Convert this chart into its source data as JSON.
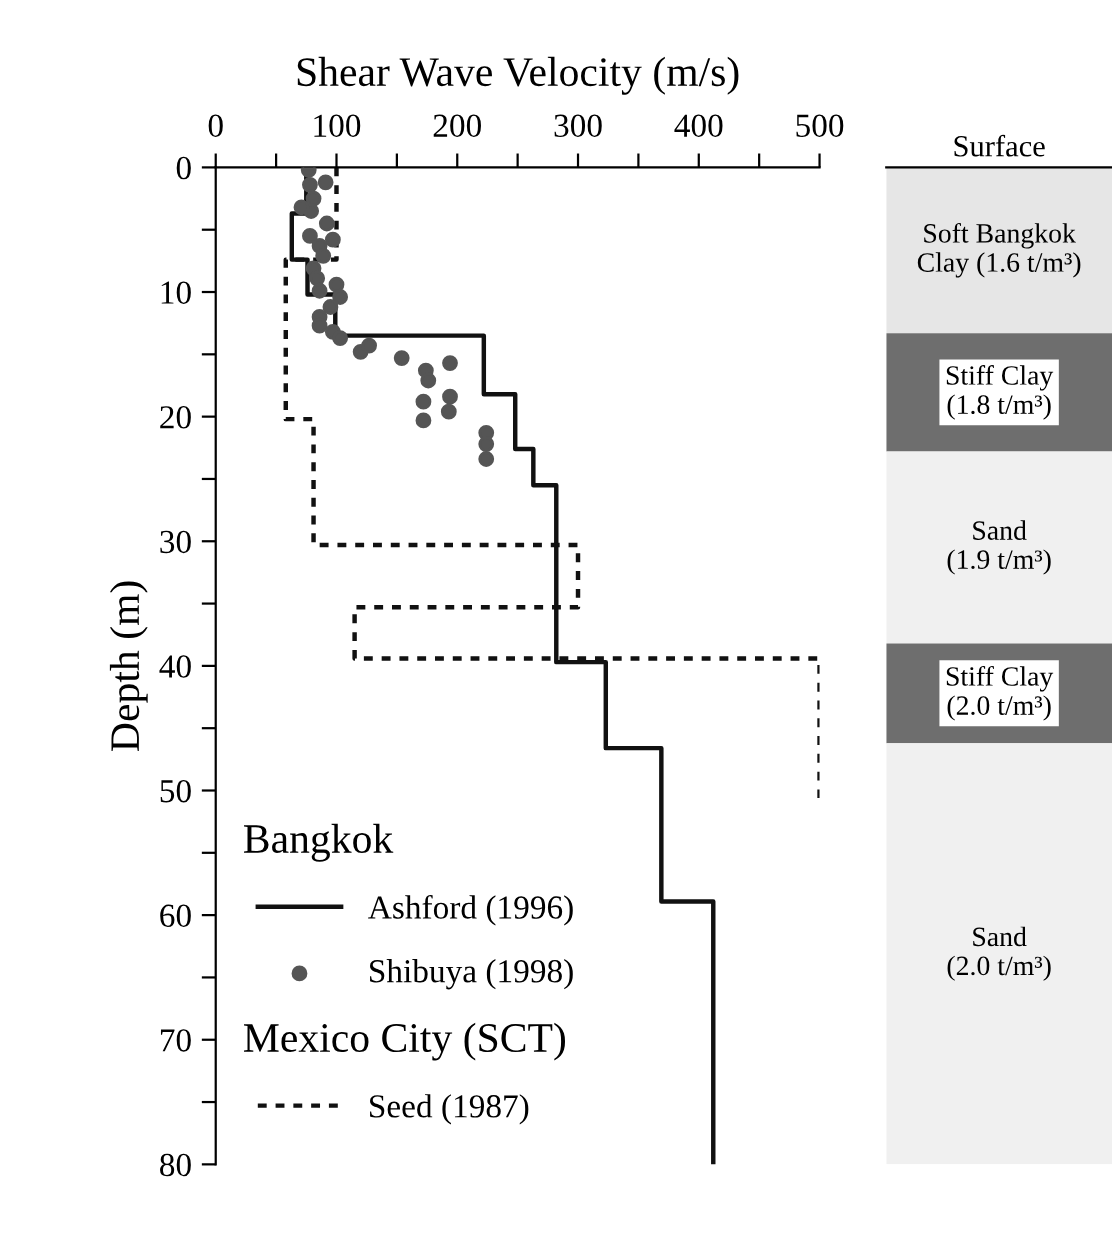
{
  "chart_data": [
    {
      "type": "line",
      "xlabel": "Shear Wave Velocity (m/s)",
      "ylabel": "Depth (m)",
      "xlim": [
        0,
        500
      ],
      "xticks": [
        0,
        {
          "value": 50,
          "label": null
        },
        100,
        {
          "value": 150,
          "label": null
        },
        200,
        {
          "value": 250,
          "label": null
        },
        300,
        {
          "value": 350,
          "label": null
        },
        400,
        {
          "value": 450,
          "label": null
        },
        500
      ],
      "ylim": [
        80,
        0
      ],
      "yticks": [
        0,
        {
          "value": 5,
          "label": null
        },
        10,
        {
          "value": 15,
          "label": null
        },
        20,
        {
          "value": 25,
          "label": null
        },
        30,
        {
          "value": 35,
          "label": null
        },
        40,
        {
          "value": 45,
          "label": null
        },
        50,
        {
          "value": 55,
          "label": null
        },
        60,
        {
          "value": 65,
          "label": null
        },
        70,
        {
          "value": 75,
          "label": null
        },
        80
      ],
      "grid": false,
      "legend": "bottom left",
      "annotations": [
        "Bangkok",
        "Mexico City (SCT)"
      ],
      "series": [
        {
          "name": "Ashford (1996)",
          "type": "line",
          "line_style": "solid",
          "marker": "none",
          "color": "#111111",
          "x": [
            75,
            75,
            63,
            63,
            76,
            76,
            99,
            99,
            222,
            222,
            248,
            248,
            263,
            263,
            282,
            282,
            323,
            323,
            369,
            369,
            412,
            412
          ],
          "values": [
            0,
            3.7,
            3.7,
            7.4,
            7.4,
            10.2,
            10.2,
            13.5,
            13.5,
            18.2,
            18.2,
            22.6,
            22.6,
            25.5,
            25.5,
            39.7,
            39.7,
            46.6,
            46.6,
            58.9,
            58.9,
            80
          ]
        },
        {
          "name": "Shibuya (1998)",
          "type": "scatter",
          "marker": "circle",
          "color": "#555555",
          "x": [
            77,
            91,
            78,
            81,
            79,
            71,
            92,
            78,
            86,
            97,
            89,
            81,
            84,
            100,
            86,
            103,
            95,
            86,
            86,
            97,
            103,
            120,
            127,
            154,
            174,
            176,
            194,
            172,
            194,
            193,
            172,
            224,
            224,
            224
          ],
          "values": [
            0.2,
            1.2,
            1.4,
            2.5,
            3.5,
            3.2,
            4.5,
            5.5,
            6.3,
            5.8,
            7.1,
            8.1,
            8.9,
            9.4,
            9.9,
            10.4,
            11.2,
            12.0,
            12.7,
            13.2,
            13.7,
            14.8,
            14.3,
            15.3,
            16.3,
            17.1,
            15.7,
            18.8,
            18.4,
            19.6,
            20.3,
            21.3,
            22.2,
            23.4
          ]
        },
        {
          "name": "Seed (1987)",
          "type": "line",
          "line_style": "dotted",
          "marker": "none",
          "color": "#111111",
          "x": [
            100,
            100,
            58,
            58,
            81,
            81,
            300,
            300,
            115,
            115,
            500,
            500
          ],
          "values": [
            0,
            7.4,
            7.4,
            20.2,
            20.2,
            30.3,
            30.3,
            35.3,
            35.3,
            39.4,
            39.4,
            50.6
          ]
        }
      ]
    },
    {
      "type": "bar",
      "title": "Surface",
      "stacked": true,
      "ylim": [
        80,
        0
      ],
      "tick_labels": false,
      "categories": [
        null
      ],
      "series": [
        {
          "name": "Soft Bangkok Clay (1.6 t/m³)",
          "color": "#e6e6e6",
          "values": [
            13.3
          ]
        },
        {
          "name": "Stiff Clay (1.8 t/m³)",
          "color": "#6e6e6e",
          "values": [
            9.5
          ]
        },
        {
          "name": "Sand (1.9 t/m³)",
          "color": "#f0f0f0",
          "values": [
            15.4
          ]
        },
        {
          "name": "Stiff Clay (2.0 t/m³)",
          "color": "#6e6e6e",
          "values": [
            8.0
          ]
        },
        {
          "name": "Sand (2.0 t/m³)",
          "color": "#f0f0f0",
          "values": [
            33.8
          ]
        }
      ]
    }
  ]
}
